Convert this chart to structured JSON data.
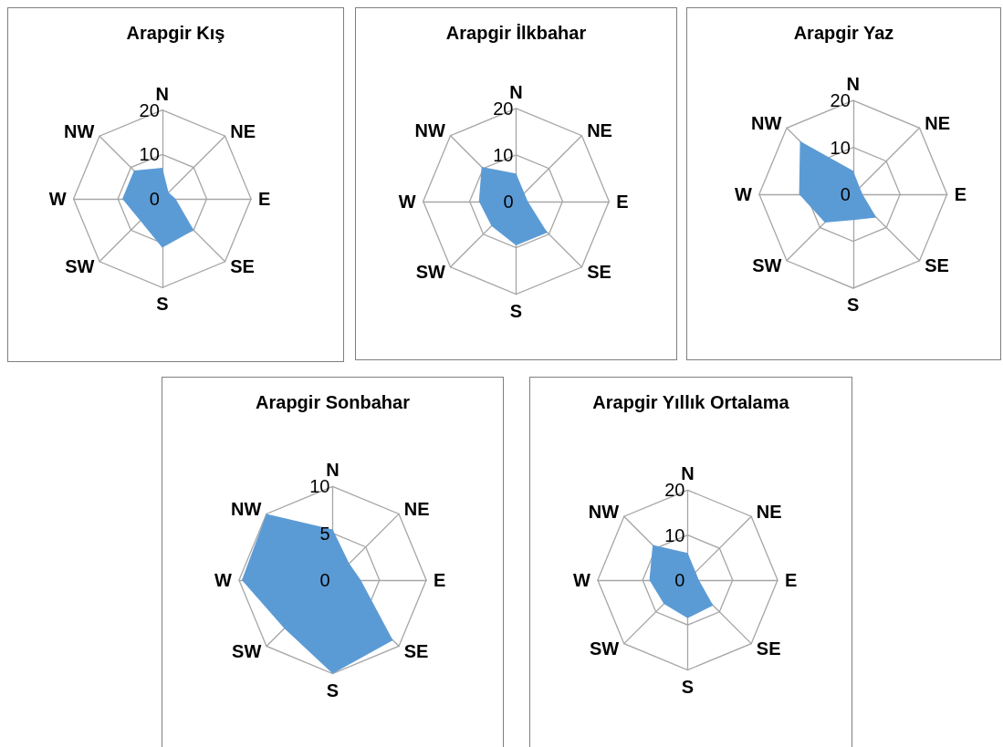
{
  "chart_data": [
    {
      "type": "radar",
      "title": "Arapgir Kış",
      "categories": [
        "N",
        "NE",
        "E",
        "SE",
        "S",
        "SW",
        "W",
        "NW"
      ],
      "series": [
        {
          "color": "#5b9bd5",
          "values": [
            7,
            2,
            3,
            10,
            11,
            7,
            9,
            9
          ]
        }
      ],
      "ylim": [
        0,
        20
      ],
      "yticks": [
        0,
        10,
        20
      ],
      "grid": true
    },
    {
      "type": "radar",
      "title": "Arapgir İlkbahar",
      "categories": [
        "N",
        "NE",
        "E",
        "SE",
        "S",
        "SW",
        "W",
        "NW"
      ],
      "series": [
        {
          "color": "#5b9bd5",
          "values": [
            6,
            2.5,
            2.5,
            9.5,
            9.5,
            7.5,
            8,
            10.5
          ]
        }
      ],
      "ylim": [
        0,
        20
      ],
      "yticks": [
        0,
        10,
        20
      ],
      "grid": true
    },
    {
      "type": "radar",
      "title": "Arapgir Yaz",
      "categories": [
        "N",
        "NE",
        "E",
        "SE",
        "S",
        "SW",
        "W",
        "NW"
      ],
      "series": [
        {
          "color": "#5b9bd5",
          "values": [
            5,
            2,
            2,
            7,
            5.5,
            8.5,
            11.5,
            16
          ]
        }
      ],
      "ylim": [
        0,
        20
      ],
      "yticks": [
        0,
        10,
        20
      ],
      "grid": true
    },
    {
      "type": "radar",
      "title": "Arapgir Sonbahar",
      "categories": [
        "N",
        "NE",
        "E",
        "SE",
        "S",
        "SW",
        "W",
        "NW"
      ],
      "series": [
        {
          "color": "#5b9bd5",
          "values": [
            5.4,
            2.5,
            3,
            9.1,
            10,
            7.3,
            9.7,
            10
          ]
        }
      ],
      "ylim": [
        0,
        10
      ],
      "yticks": [
        0,
        5,
        10
      ],
      "grid": true
    },
    {
      "type": "radar",
      "title": "Arapgir Yıllık Ortalama",
      "categories": [
        "N",
        "NE",
        "E",
        "SE",
        "S",
        "SW",
        "W",
        "NW"
      ],
      "series": [
        {
          "color": "#5b9bd5",
          "values": [
            6,
            2.5,
            2.5,
            8,
            8.5,
            7.5,
            8.5,
            11
          ]
        }
      ],
      "ylim": [
        0,
        20
      ],
      "yticks": [
        0,
        10,
        20
      ],
      "grid": true
    }
  ]
}
